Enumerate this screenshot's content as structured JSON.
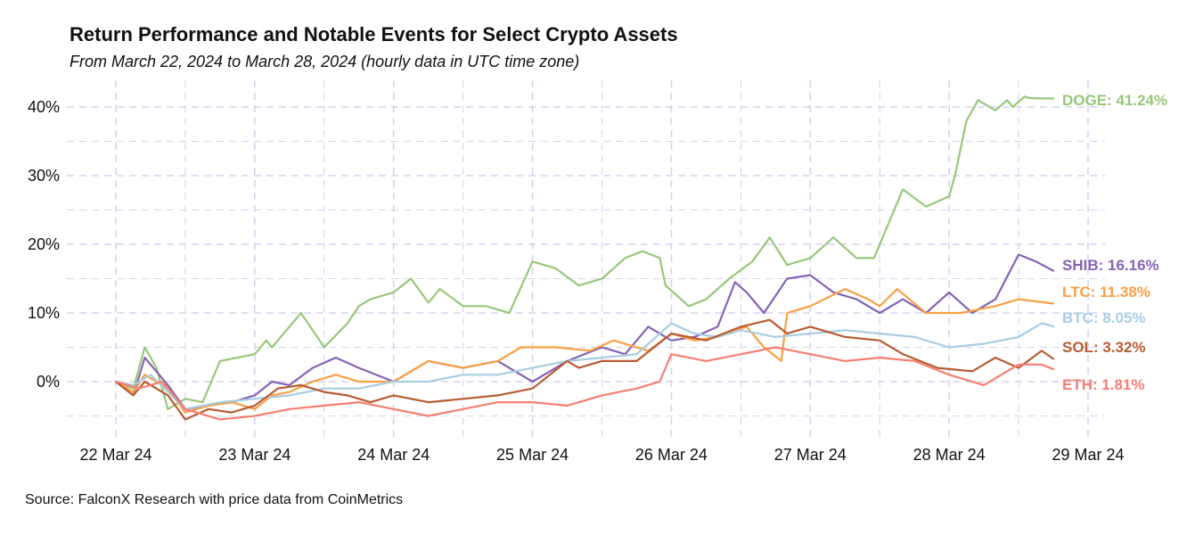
{
  "title": "Return Performance and Notable Events for Select Crypto Assets",
  "subtitle": "From March 22, 2024 to March 28, 2024 (hourly data in UTC time zone)",
  "source": "Source: FalconX Research with price data from CoinMetrics",
  "chart_data": {
    "type": "line",
    "title": "Return Performance and Notable Events for Select Crypto Assets",
    "x_unit": "date (UTC)",
    "x_ticks": [
      "22 Mar 24",
      "23 Mar 24",
      "24 Mar 24",
      "25 Mar 24",
      "26 Mar 24",
      "27 Mar 24",
      "28 Mar 24",
      "29 Mar 24"
    ],
    "xlim": [
      "2024-03-22 00:00",
      "2024-03-29 00:00"
    ],
    "ylim": [
      -7,
      45
    ],
    "y_ticks": [
      "0%",
      "10%",
      "20%",
      "30%",
      "40%"
    ],
    "y_tick_values": [
      0,
      10,
      20,
      30,
      40
    ],
    "grid": true,
    "series": [
      {
        "name": "DOGE",
        "end_label": "DOGE: 41.24%",
        "color": "#98c77b",
        "x": [
          "2024-03-22 00:00",
          "2024-03-22 03:00",
          "2024-03-22 05:00",
          "2024-03-22 07:00",
          "2024-03-22 09:00",
          "2024-03-22 12:00",
          "2024-03-22 15:00",
          "2024-03-22 18:00",
          "2024-03-23 00:00",
          "2024-03-23 02:00",
          "2024-03-23 03:00",
          "2024-03-23 05:00",
          "2024-03-23 08:00",
          "2024-03-23 12:00",
          "2024-03-23 16:00",
          "2024-03-23 18:00",
          "2024-03-23 20:00",
          "2024-03-24 00:00",
          "2024-03-24 03:00",
          "2024-03-24 06:00",
          "2024-03-24 08:00",
          "2024-03-24 12:00",
          "2024-03-24 16:00",
          "2024-03-24 20:00",
          "2024-03-25 00:00",
          "2024-03-25 04:00",
          "2024-03-25 08:00",
          "2024-03-25 12:00",
          "2024-03-25 16:00",
          "2024-03-25 19:00",
          "2024-03-25 22:00",
          "2024-03-25 23:00",
          "2024-03-26 03:00",
          "2024-03-26 06:00",
          "2024-03-26 10:00",
          "2024-03-26 14:00",
          "2024-03-26 17:00",
          "2024-03-26 20:00",
          "2024-03-27 00:00",
          "2024-03-27 04:00",
          "2024-03-27 08:00",
          "2024-03-27 11:00",
          "2024-03-27 13:00",
          "2024-03-27 16:00",
          "2024-03-27 20:00",
          "2024-03-28 00:00",
          "2024-03-28 01:00",
          "2024-03-28 03:00",
          "2024-03-28 05:00",
          "2024-03-28 08:00",
          "2024-03-28 10:00",
          "2024-03-28 11:00",
          "2024-03-28 13:00",
          "2024-03-28 14:00",
          "2024-03-28 16:00",
          "2024-03-28 18:00"
        ],
        "y": [
          0,
          -1,
          5,
          2,
          -4,
          -2.5,
          -3,
          3,
          4,
          6,
          5,
          7,
          10,
          5,
          8.5,
          11,
          12,
          13,
          15,
          11.5,
          13.5,
          11,
          11,
          10,
          17.5,
          16.5,
          14,
          15,
          18,
          19,
          18,
          14,
          11,
          12,
          15,
          17.5,
          21,
          17,
          18,
          21,
          18,
          18,
          22,
          28,
          25.5,
          27,
          30,
          38,
          41,
          39.5,
          41,
          40,
          41.5,
          41.3,
          41.25,
          41.24
        ]
      },
      {
        "name": "SHIB",
        "end_label": "SHIB: 16.16%",
        "color": "#8563b5",
        "x": [
          "2024-03-22 00:00",
          "2024-03-22 03:00",
          "2024-03-22 05:00",
          "2024-03-22 09:00",
          "2024-03-22 12:00",
          "2024-03-22 16:00",
          "2024-03-22 20:00",
          "2024-03-23 00:00",
          "2024-03-23 03:00",
          "2024-03-23 06:00",
          "2024-03-23 10:00",
          "2024-03-23 14:00",
          "2024-03-23 18:00",
          "2024-03-24 00:00",
          "2024-03-24 06:00",
          "2024-03-24 12:00",
          "2024-03-24 18:00",
          "2024-03-25 00:00",
          "2024-03-25 06:00",
          "2024-03-25 12:00",
          "2024-03-25 16:00",
          "2024-03-25 20:00",
          "2024-03-26 00:00",
          "2024-03-26 04:00",
          "2024-03-26 08:00",
          "2024-03-26 11:00",
          "2024-03-26 13:00",
          "2024-03-26 16:00",
          "2024-03-26 20:00",
          "2024-03-27 00:00",
          "2024-03-27 04:00",
          "2024-03-27 08:00",
          "2024-03-27 12:00",
          "2024-03-27 16:00",
          "2024-03-27 20:00",
          "2024-03-28 00:00",
          "2024-03-28 04:00",
          "2024-03-28 08:00",
          "2024-03-28 12:00",
          "2024-03-28 15:00",
          "2024-03-28 18:00"
        ],
        "y": [
          0,
          -2,
          3.5,
          -0.5,
          -4,
          -3.5,
          -3,
          -2,
          0,
          -0.5,
          2,
          3.5,
          2,
          0,
          3,
          2,
          3,
          0,
          3,
          5,
          4,
          8,
          6,
          6.5,
          8,
          14.5,
          13,
          10,
          15,
          15.5,
          13,
          12,
          10,
          12,
          10,
          13,
          10,
          12,
          18.5,
          17.5,
          16.16
        ]
      },
      {
        "name": "LTC",
        "end_label": "LTC: 11.38%",
        "color": "#f8a044",
        "x": [
          "2024-03-22 00:00",
          "2024-03-22 03:00",
          "2024-03-22 05:00",
          "2024-03-22 09:00",
          "2024-03-22 12:00",
          "2024-03-22 16:00",
          "2024-03-22 20:00",
          "2024-03-23 00:00",
          "2024-03-23 03:00",
          "2024-03-23 06:00",
          "2024-03-23 10:00",
          "2024-03-23 14:00",
          "2024-03-23 18:00",
          "2024-03-24 00:00",
          "2024-03-24 06:00",
          "2024-03-24 12:00",
          "2024-03-24 18:00",
          "2024-03-24 22:00",
          "2024-03-25 04:00",
          "2024-03-25 10:00",
          "2024-03-25 14:00",
          "2024-03-25 20:00",
          "2024-03-26 00:00",
          "2024-03-26 04:00",
          "2024-03-26 08:00",
          "2024-03-26 13:00",
          "2024-03-26 16:00",
          "2024-03-26 19:00",
          "2024-03-26 20:00",
          "2024-03-27 00:00",
          "2024-03-27 06:00",
          "2024-03-27 10:00",
          "2024-03-27 12:00",
          "2024-03-27 15:00",
          "2024-03-27 20:00",
          "2024-03-28 02:00",
          "2024-03-28 08:00",
          "2024-03-28 12:00",
          "2024-03-28 18:00"
        ],
        "y": [
          0,
          -1.5,
          1,
          -1,
          -4.5,
          -3.5,
          -3,
          -4,
          -2,
          -1.5,
          0,
          1,
          0,
          0,
          3,
          2,
          3,
          5,
          5,
          4.5,
          6,
          4.5,
          7,
          6,
          6.5,
          8,
          5,
          3,
          10,
          11,
          13.5,
          12,
          11,
          13.5,
          10,
          10,
          11,
          12,
          11.38
        ]
      },
      {
        "name": "BTC",
        "end_label": "BTC: 8.05%",
        "color": "#a8cde2",
        "x": [
          "2024-03-22 00:00",
          "2024-03-22 03:00",
          "2024-03-22 06:00",
          "2024-03-22 12:00",
          "2024-03-22 18:00",
          "2024-03-23 00:00",
          "2024-03-23 06:00",
          "2024-03-23 12:00",
          "2024-03-23 18:00",
          "2024-03-24 00:00",
          "2024-03-24 06:00",
          "2024-03-24 12:00",
          "2024-03-24 18:00",
          "2024-03-25 00:00",
          "2024-03-25 06:00",
          "2024-03-25 12:00",
          "2024-03-25 18:00",
          "2024-03-26 00:00",
          "2024-03-26 04:00",
          "2024-03-26 08:00",
          "2024-03-26 12:00",
          "2024-03-26 18:00",
          "2024-03-27 00:00",
          "2024-03-27 06:00",
          "2024-03-27 12:00",
          "2024-03-27 18:00",
          "2024-03-28 00:00",
          "2024-03-28 06:00",
          "2024-03-28 12:00",
          "2024-03-28 16:00",
          "2024-03-28 18:00"
        ],
        "y": [
          0,
          -0.5,
          1,
          -4,
          -3,
          -2.5,
          -2,
          -1,
          -1,
          0,
          0,
          1,
          1,
          2,
          3,
          3.5,
          4,
          8.5,
          7,
          6.5,
          7.5,
          6.5,
          7,
          7.5,
          7,
          6.5,
          5,
          5.5,
          6.5,
          8.5,
          8.05
        ]
      },
      {
        "name": "SOL",
        "end_label": "SOL: 3.32%",
        "color": "#b85c32",
        "x": [
          "2024-03-22 00:00",
          "2024-03-22 03:00",
          "2024-03-22 05:00",
          "2024-03-22 09:00",
          "2024-03-22 12:00",
          "2024-03-22 16:00",
          "2024-03-22 20:00",
          "2024-03-23 00:00",
          "2024-03-23 04:00",
          "2024-03-23 08:00",
          "2024-03-23 12:00",
          "2024-03-23 16:00",
          "2024-03-23 20:00",
          "2024-03-24 00:00",
          "2024-03-24 06:00",
          "2024-03-24 12:00",
          "2024-03-24 18:00",
          "2024-03-25 00:00",
          "2024-03-25 06:00",
          "2024-03-25 08:00",
          "2024-03-25 12:00",
          "2024-03-25 18:00",
          "2024-03-26 00:00",
          "2024-03-26 06:00",
          "2024-03-26 12:00",
          "2024-03-26 17:00",
          "2024-03-26 20:00",
          "2024-03-27 00:00",
          "2024-03-27 06:00",
          "2024-03-27 12:00",
          "2024-03-27 16:00",
          "2024-03-27 22:00",
          "2024-03-28 04:00",
          "2024-03-28 08:00",
          "2024-03-28 12:00",
          "2024-03-28 16:00",
          "2024-03-28 18:00"
        ],
        "y": [
          0,
          -2,
          0,
          -2,
          -5.5,
          -4,
          -4.5,
          -3.5,
          -1,
          -0.5,
          -1.5,
          -2,
          -3,
          -2,
          -3,
          -2.5,
          -2,
          -1,
          3,
          2,
          3,
          3,
          7,
          6,
          8,
          9,
          7,
          8,
          6.5,
          6,
          4,
          2,
          1.5,
          3.5,
          2,
          4.5,
          3.32
        ]
      },
      {
        "name": "ETH",
        "end_label": "ETH: 1.81%",
        "color": "#f57f73",
        "x": [
          "2024-03-22 00:00",
          "2024-03-22 04:00",
          "2024-03-22 08:00",
          "2024-03-22 12:00",
          "2024-03-22 18:00",
          "2024-03-23 00:00",
          "2024-03-23 06:00",
          "2024-03-23 12:00",
          "2024-03-23 18:00",
          "2024-03-24 00:00",
          "2024-03-24 06:00",
          "2024-03-24 12:00",
          "2024-03-24 18:00",
          "2024-03-25 00:00",
          "2024-03-25 06:00",
          "2024-03-25 12:00",
          "2024-03-25 18:00",
          "2024-03-25 22:00",
          "2024-03-26 00:00",
          "2024-03-26 06:00",
          "2024-03-26 12:00",
          "2024-03-26 18:00",
          "2024-03-27 00:00",
          "2024-03-27 06:00",
          "2024-03-27 12:00",
          "2024-03-27 18:00",
          "2024-03-28 00:00",
          "2024-03-28 06:00",
          "2024-03-28 12:00",
          "2024-03-28 16:00",
          "2024-03-28 18:00"
        ],
        "y": [
          0,
          -1,
          0,
          -4,
          -5.5,
          -5,
          -4,
          -3.5,
          -3,
          -4,
          -5,
          -4,
          -3,
          -3,
          -3.5,
          -2,
          -1,
          0,
          4,
          3,
          4,
          5,
          4,
          3,
          3.5,
          3,
          1,
          -0.5,
          2.5,
          2.5,
          1.81
        ]
      }
    ]
  }
}
